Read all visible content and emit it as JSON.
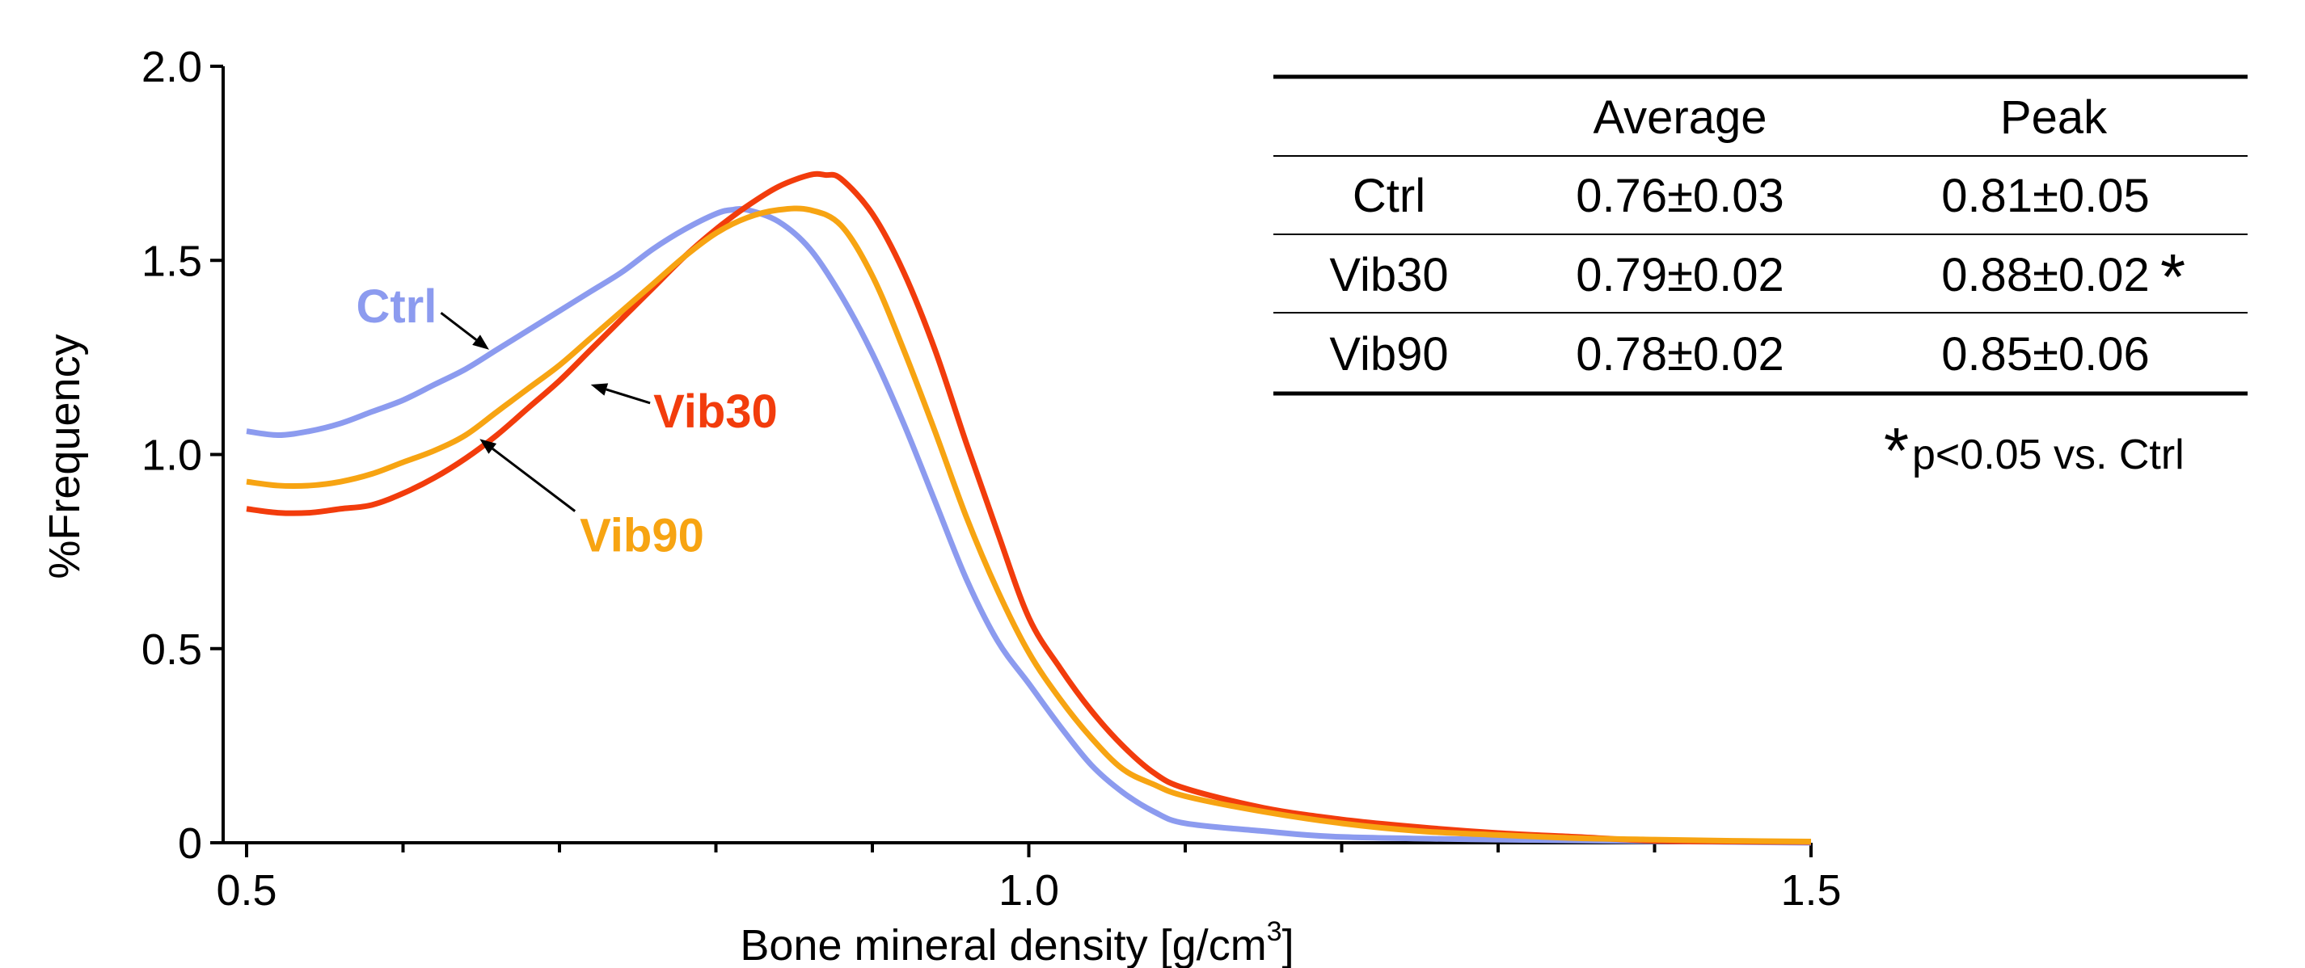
{
  "chart_data": {
    "type": "line",
    "xlabel": "Bone mineral density [g/cm",
    "xlabel_sup": "3",
    "xlabel_end": "]",
    "ylabel": "%Frequency",
    "xlim": [
      0.5,
      1.5
    ],
    "ylim": [
      0,
      2.0
    ],
    "x_ticks": [
      {
        "value": 0.5,
        "label": "0.5"
      },
      {
        "value": 1.0,
        "label": "1.0"
      },
      {
        "value": 1.5,
        "label": "1.5"
      }
    ],
    "x_minor_ticks": [
      0.6,
      0.7,
      0.8,
      0.9,
      1.1,
      1.2,
      1.3,
      1.4
    ],
    "y_ticks": [
      {
        "value": 0,
        "label": "0"
      },
      {
        "value": 0.5,
        "label": "0.5"
      },
      {
        "value": 1.0,
        "label": "1.0"
      },
      {
        "value": 1.5,
        "label": "1.5"
      },
      {
        "value": 2.0,
        "label": "2.0"
      }
    ],
    "grid": false,
    "series": [
      {
        "name": "Ctrl",
        "color": "#8c9bef",
        "label_value": {
          "x": 0.57,
          "y": 1.34
        },
        "arrow_tip": {
          "x": 0.655,
          "y": 1.27
        },
        "points": [
          [
            0.5,
            1.06
          ],
          [
            0.52,
            1.05
          ],
          [
            0.54,
            1.06
          ],
          [
            0.56,
            1.08
          ],
          [
            0.58,
            1.11
          ],
          [
            0.6,
            1.14
          ],
          [
            0.62,
            1.18
          ],
          [
            0.64,
            1.22
          ],
          [
            0.66,
            1.27
          ],
          [
            0.68,
            1.32
          ],
          [
            0.7,
            1.37
          ],
          [
            0.72,
            1.42
          ],
          [
            0.74,
            1.47
          ],
          [
            0.76,
            1.53
          ],
          [
            0.78,
            1.58
          ],
          [
            0.8,
            1.62
          ],
          [
            0.81,
            1.63
          ],
          [
            0.82,
            1.63
          ],
          [
            0.84,
            1.6
          ],
          [
            0.86,
            1.53
          ],
          [
            0.88,
            1.41
          ],
          [
            0.9,
            1.26
          ],
          [
            0.92,
            1.08
          ],
          [
            0.94,
            0.88
          ],
          [
            0.96,
            0.68
          ],
          [
            0.98,
            0.52
          ],
          [
            1.0,
            0.41
          ],
          [
            1.02,
            0.3
          ],
          [
            1.04,
            0.2
          ],
          [
            1.06,
            0.13
          ],
          [
            1.08,
            0.08
          ],
          [
            1.1,
            0.05
          ],
          [
            1.15,
            0.03
          ],
          [
            1.2,
            0.015
          ],
          [
            1.3,
            0.008
          ],
          [
            1.4,
            0.004
          ],
          [
            1.5,
            0.0
          ]
        ]
      },
      {
        "name": "Vib30",
        "color": "#f23c0c",
        "label_value": {
          "x": 0.76,
          "y": 1.07
        },
        "arrow_tip": {
          "x": 0.72,
          "y": 1.18
        },
        "points": [
          [
            0.5,
            0.86
          ],
          [
            0.52,
            0.85
          ],
          [
            0.54,
            0.85
          ],
          [
            0.56,
            0.86
          ],
          [
            0.58,
            0.87
          ],
          [
            0.6,
            0.9
          ],
          [
            0.62,
            0.94
          ],
          [
            0.64,
            0.99
          ],
          [
            0.66,
            1.05
          ],
          [
            0.68,
            1.12
          ],
          [
            0.7,
            1.19
          ],
          [
            0.72,
            1.27
          ],
          [
            0.74,
            1.35
          ],
          [
            0.76,
            1.43
          ],
          [
            0.78,
            1.51
          ],
          [
            0.8,
            1.58
          ],
          [
            0.82,
            1.64
          ],
          [
            0.84,
            1.69
          ],
          [
            0.86,
            1.72
          ],
          [
            0.87,
            1.72
          ],
          [
            0.88,
            1.71
          ],
          [
            0.9,
            1.62
          ],
          [
            0.92,
            1.47
          ],
          [
            0.94,
            1.27
          ],
          [
            0.96,
            1.03
          ],
          [
            0.98,
            0.8
          ],
          [
            1.0,
            0.58
          ],
          [
            1.02,
            0.45
          ],
          [
            1.04,
            0.34
          ],
          [
            1.06,
            0.25
          ],
          [
            1.08,
            0.18
          ],
          [
            1.1,
            0.14
          ],
          [
            1.15,
            0.09
          ],
          [
            1.2,
            0.06
          ],
          [
            1.25,
            0.04
          ],
          [
            1.3,
            0.025
          ],
          [
            1.35,
            0.015
          ],
          [
            1.4,
            0.005
          ],
          [
            1.45,
            0.003
          ],
          [
            1.5,
            0.002
          ]
        ]
      },
      {
        "name": "Vib90",
        "color": "#f7a412",
        "label_value": {
          "x": 0.713,
          "y": 0.75
        },
        "arrow_tip": {
          "x": 0.649,
          "y": 1.04
        },
        "points": [
          [
            0.5,
            0.93
          ],
          [
            0.52,
            0.92
          ],
          [
            0.54,
            0.92
          ],
          [
            0.56,
            0.93
          ],
          [
            0.58,
            0.95
          ],
          [
            0.6,
            0.98
          ],
          [
            0.62,
            1.01
          ],
          [
            0.64,
            1.05
          ],
          [
            0.66,
            1.11
          ],
          [
            0.68,
            1.17
          ],
          [
            0.7,
            1.23
          ],
          [
            0.72,
            1.3
          ],
          [
            0.74,
            1.37
          ],
          [
            0.76,
            1.44
          ],
          [
            0.78,
            1.51
          ],
          [
            0.8,
            1.57
          ],
          [
            0.82,
            1.61
          ],
          [
            0.84,
            1.63
          ],
          [
            0.86,
            1.63
          ],
          [
            0.88,
            1.59
          ],
          [
            0.9,
            1.46
          ],
          [
            0.92,
            1.27
          ],
          [
            0.94,
            1.06
          ],
          [
            0.96,
            0.84
          ],
          [
            0.98,
            0.65
          ],
          [
            1.0,
            0.49
          ],
          [
            1.02,
            0.37
          ],
          [
            1.04,
            0.27
          ],
          [
            1.06,
            0.19
          ],
          [
            1.08,
            0.15
          ],
          [
            1.1,
            0.12
          ],
          [
            1.15,
            0.08
          ],
          [
            1.2,
            0.05
          ],
          [
            1.25,
            0.03
          ],
          [
            1.3,
            0.02
          ],
          [
            1.35,
            0.012
          ],
          [
            1.4,
            0.008
          ],
          [
            1.45,
            0.005
          ],
          [
            1.5,
            0.003
          ]
        ]
      }
    ]
  },
  "stats_table": {
    "headers": [
      "",
      "Average",
      "Peak"
    ],
    "rows": [
      {
        "group": "Ctrl",
        "average": "0.76±0.03",
        "peak": "0.81±0.05",
        "peak_mark": ""
      },
      {
        "group": "Vib30",
        "average": "0.79±0.02",
        "peak": "0.88±0.02",
        "peak_mark": "*"
      },
      {
        "group": "Vib90",
        "average": "0.78±0.02",
        "peak": "0.85±0.06",
        "peak_mark": ""
      }
    ],
    "note_mark": "*",
    "note": "p<0.05 vs. Ctrl"
  }
}
